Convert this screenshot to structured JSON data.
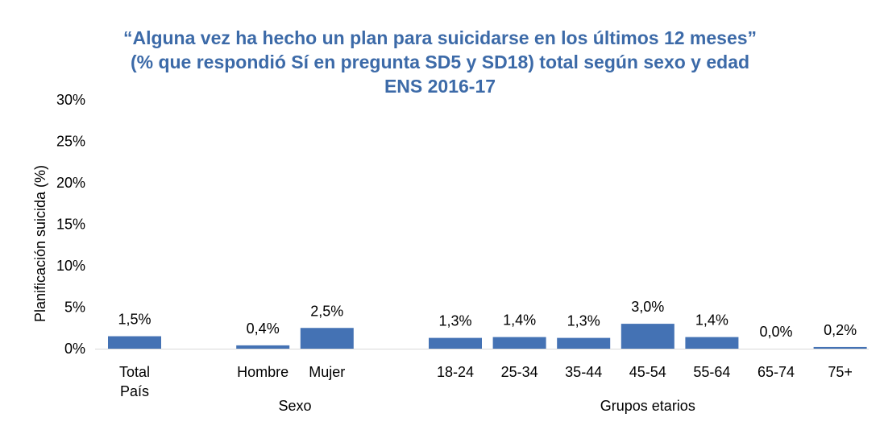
{
  "title_lines": [
    "“Alguna vez ha hecho un plan para suicidarse en los últimos 12 meses”",
    "(% que respondió Sí en pregunta SD5 y SD18) total según sexo y edad",
    "ENS  2016-17"
  ],
  "colors": {
    "bar": "#4472b4",
    "title": "#3c6aa8"
  },
  "chart_data": {
    "type": "bar",
    "ylabel": "Planificación suicida (%)",
    "ylim": [
      0,
      30
    ],
    "yticks": [
      "0%",
      "5%",
      "10%",
      "15%",
      "20%",
      "25%",
      "30%"
    ],
    "grid": false,
    "categories": [
      [
        "Total",
        "País"
      ],
      [
        "Hombre"
      ],
      [
        "Mujer"
      ],
      [
        "18-24"
      ],
      [
        "25-34"
      ],
      [
        "35-44"
      ],
      [
        "45-54"
      ],
      [
        "55-64"
      ],
      [
        "65-74"
      ],
      [
        "75+"
      ]
    ],
    "values": [
      1.5,
      0.4,
      2.5,
      1.3,
      1.4,
      1.3,
      3.0,
      1.4,
      0.0,
      0.2
    ],
    "data_labels": [
      "1,5%",
      "0,4%",
      "2,5%",
      "1,3%",
      "1,4%",
      "1,3%",
      "3,0%",
      "1,4%",
      "0,0%",
      "0,2%"
    ],
    "groups": [
      {
        "label": "Sexo",
        "start": 1,
        "end": 2
      },
      {
        "label": "Grupos etarios",
        "start": 3,
        "end": 9
      }
    ]
  }
}
